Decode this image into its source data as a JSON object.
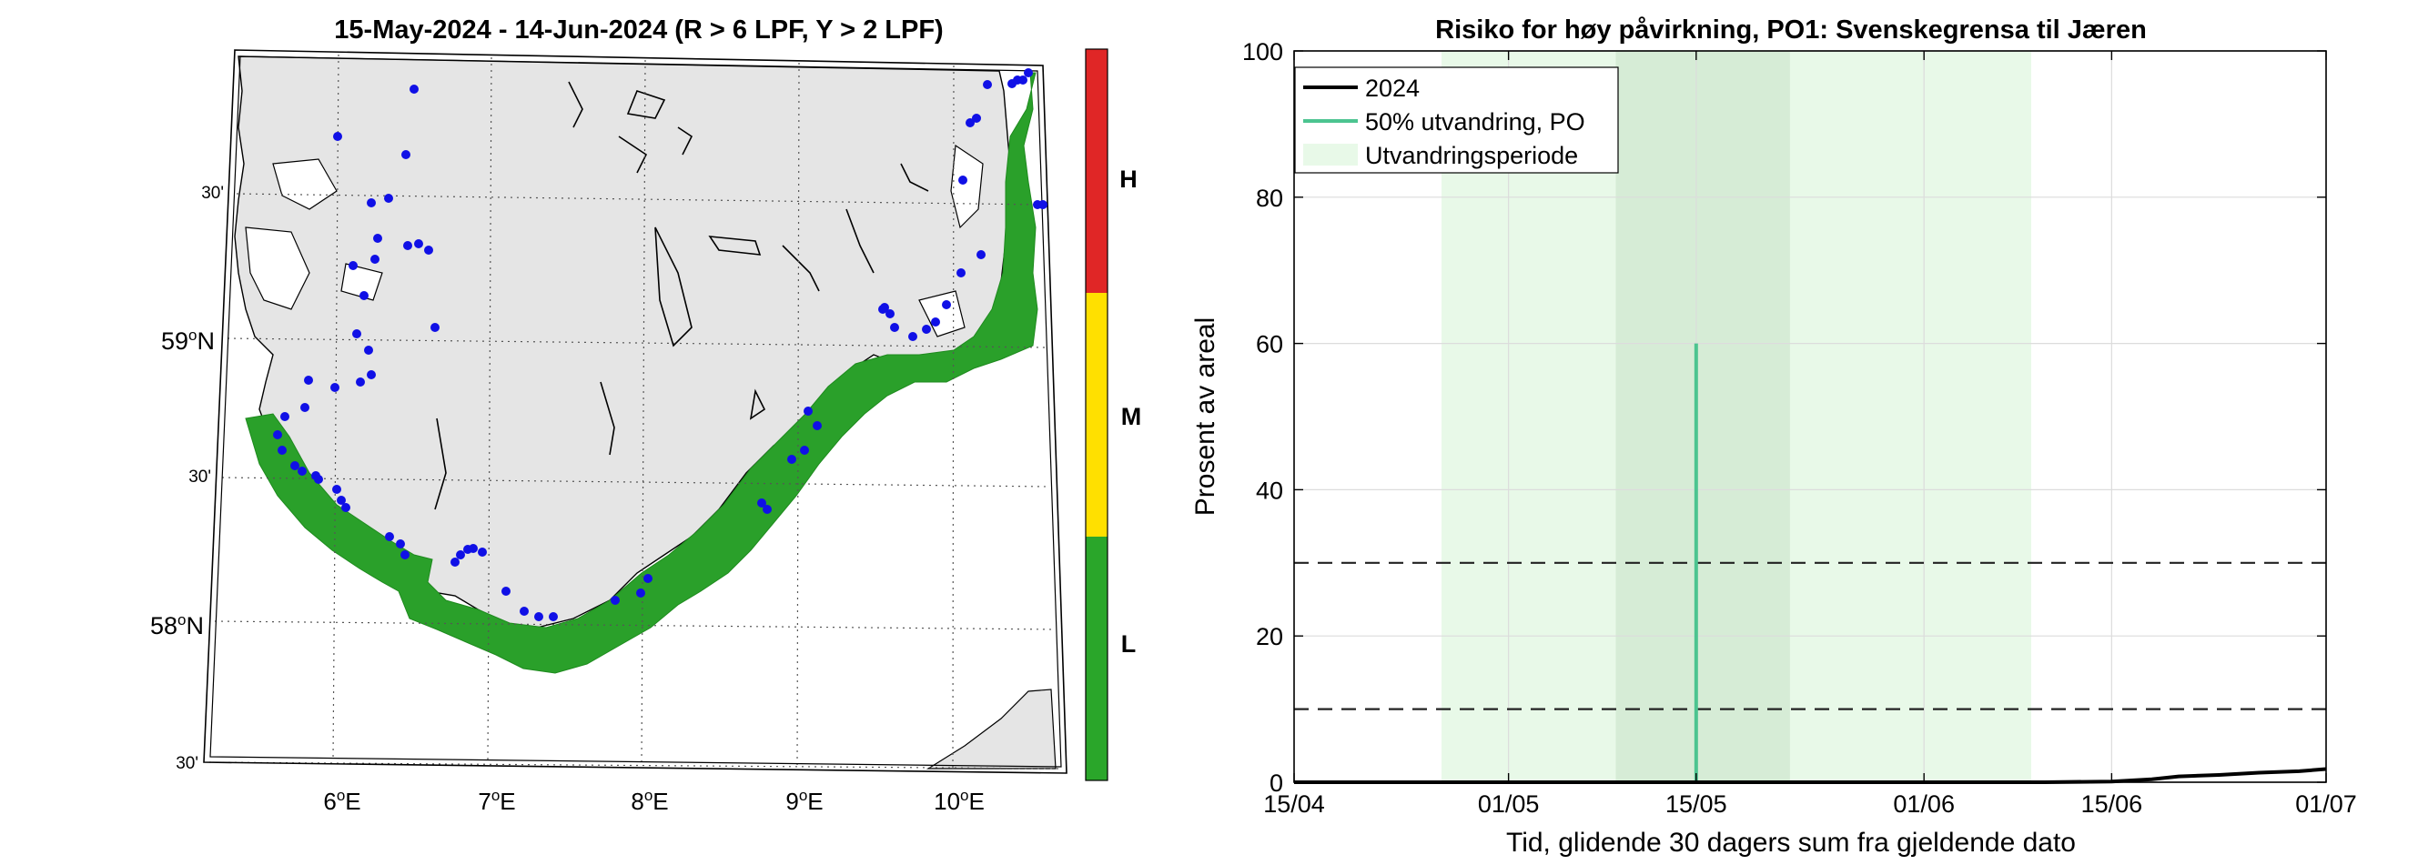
{
  "map": {
    "title": "15-May-2024  - 14-Jun-2024  (R > 6 LPF, Y > 2 LPF)",
    "lon_labels": [
      {
        "deg": "6",
        "unit": "E"
      },
      {
        "deg": "7",
        "unit": "E"
      },
      {
        "deg": "8",
        "unit": "E"
      },
      {
        "deg": "9",
        "unit": "E"
      },
      {
        "deg": "10",
        "unit": "E"
      }
    ],
    "lat_labels": [
      {
        "kind": "minutes",
        "text": "30'"
      },
      {
        "kind": "degree",
        "deg": "59",
        "unit": "N"
      },
      {
        "kind": "minutes",
        "text": "30'"
      },
      {
        "kind": "degree",
        "deg": "58",
        "unit": "N"
      },
      {
        "kind": "minutes",
        "text": "30'"
      }
    ],
    "colors": {
      "land": "#e5e5e5",
      "sea": "#ffffff",
      "risk_zone": "#2aa02a",
      "stations": "#1010e6"
    }
  },
  "colorbar": {
    "levels": [
      {
        "label": "H",
        "color": "#e02626"
      },
      {
        "label": "M",
        "color": "#ffe000"
      },
      {
        "label": "L",
        "color": "#2aa62a"
      }
    ]
  },
  "chart_data": {
    "type": "line",
    "title": "Risiko for høy påvirkning, PO1: Svenskegrensa til Jæren",
    "xlabel": "Tid, glidende 30 dagers sum fra gjeldende dato",
    "ylabel": "Prosent av areal",
    "xlim": [
      "2024-04-15",
      "2024-07-01"
    ],
    "ylim": [
      0,
      100
    ],
    "x_ticks": [
      "15/04",
      "01/05",
      "15/05",
      "01/06",
      "15/06",
      "01/07"
    ],
    "y_ticks": [
      0,
      20,
      40,
      60,
      80,
      100
    ],
    "grid": true,
    "legend": {
      "position": "top-left",
      "entries": [
        "2024",
        "50% utvandring, PO",
        "Utvandringsperiode"
      ]
    },
    "series": [
      {
        "name": "2024",
        "color": "#000000",
        "points": [
          {
            "date": "2024-04-15",
            "value": 0
          },
          {
            "date": "2024-06-10",
            "value": 0
          },
          {
            "date": "2024-06-15",
            "value": 0.1
          },
          {
            "date": "2024-06-18",
            "value": 0.4
          },
          {
            "date": "2024-06-20",
            "value": 0.8
          },
          {
            "date": "2024-06-23",
            "value": 1.0
          },
          {
            "date": "2024-06-26",
            "value": 1.3
          },
          {
            "date": "2024-06-29",
            "value": 1.5
          },
          {
            "date": "2024-07-01",
            "value": 1.8
          }
        ]
      }
    ],
    "migration_50pct": {
      "name": "50% utvandring, PO",
      "date": "2024-05-15",
      "value": 60,
      "color": "#4cc490"
    },
    "migration_period": {
      "name": "Utvandringsperiode",
      "start": "2024-04-26",
      "end": "2024-06-09",
      "color": "#e8f9e8"
    },
    "migration_core": {
      "start": "2024-05-09",
      "end": "2024-05-22",
      "color": "#d6ecd6"
    },
    "thresholds": [
      {
        "value": 10,
        "style": "dashed"
      },
      {
        "value": 30,
        "style": "dashed"
      }
    ]
  }
}
